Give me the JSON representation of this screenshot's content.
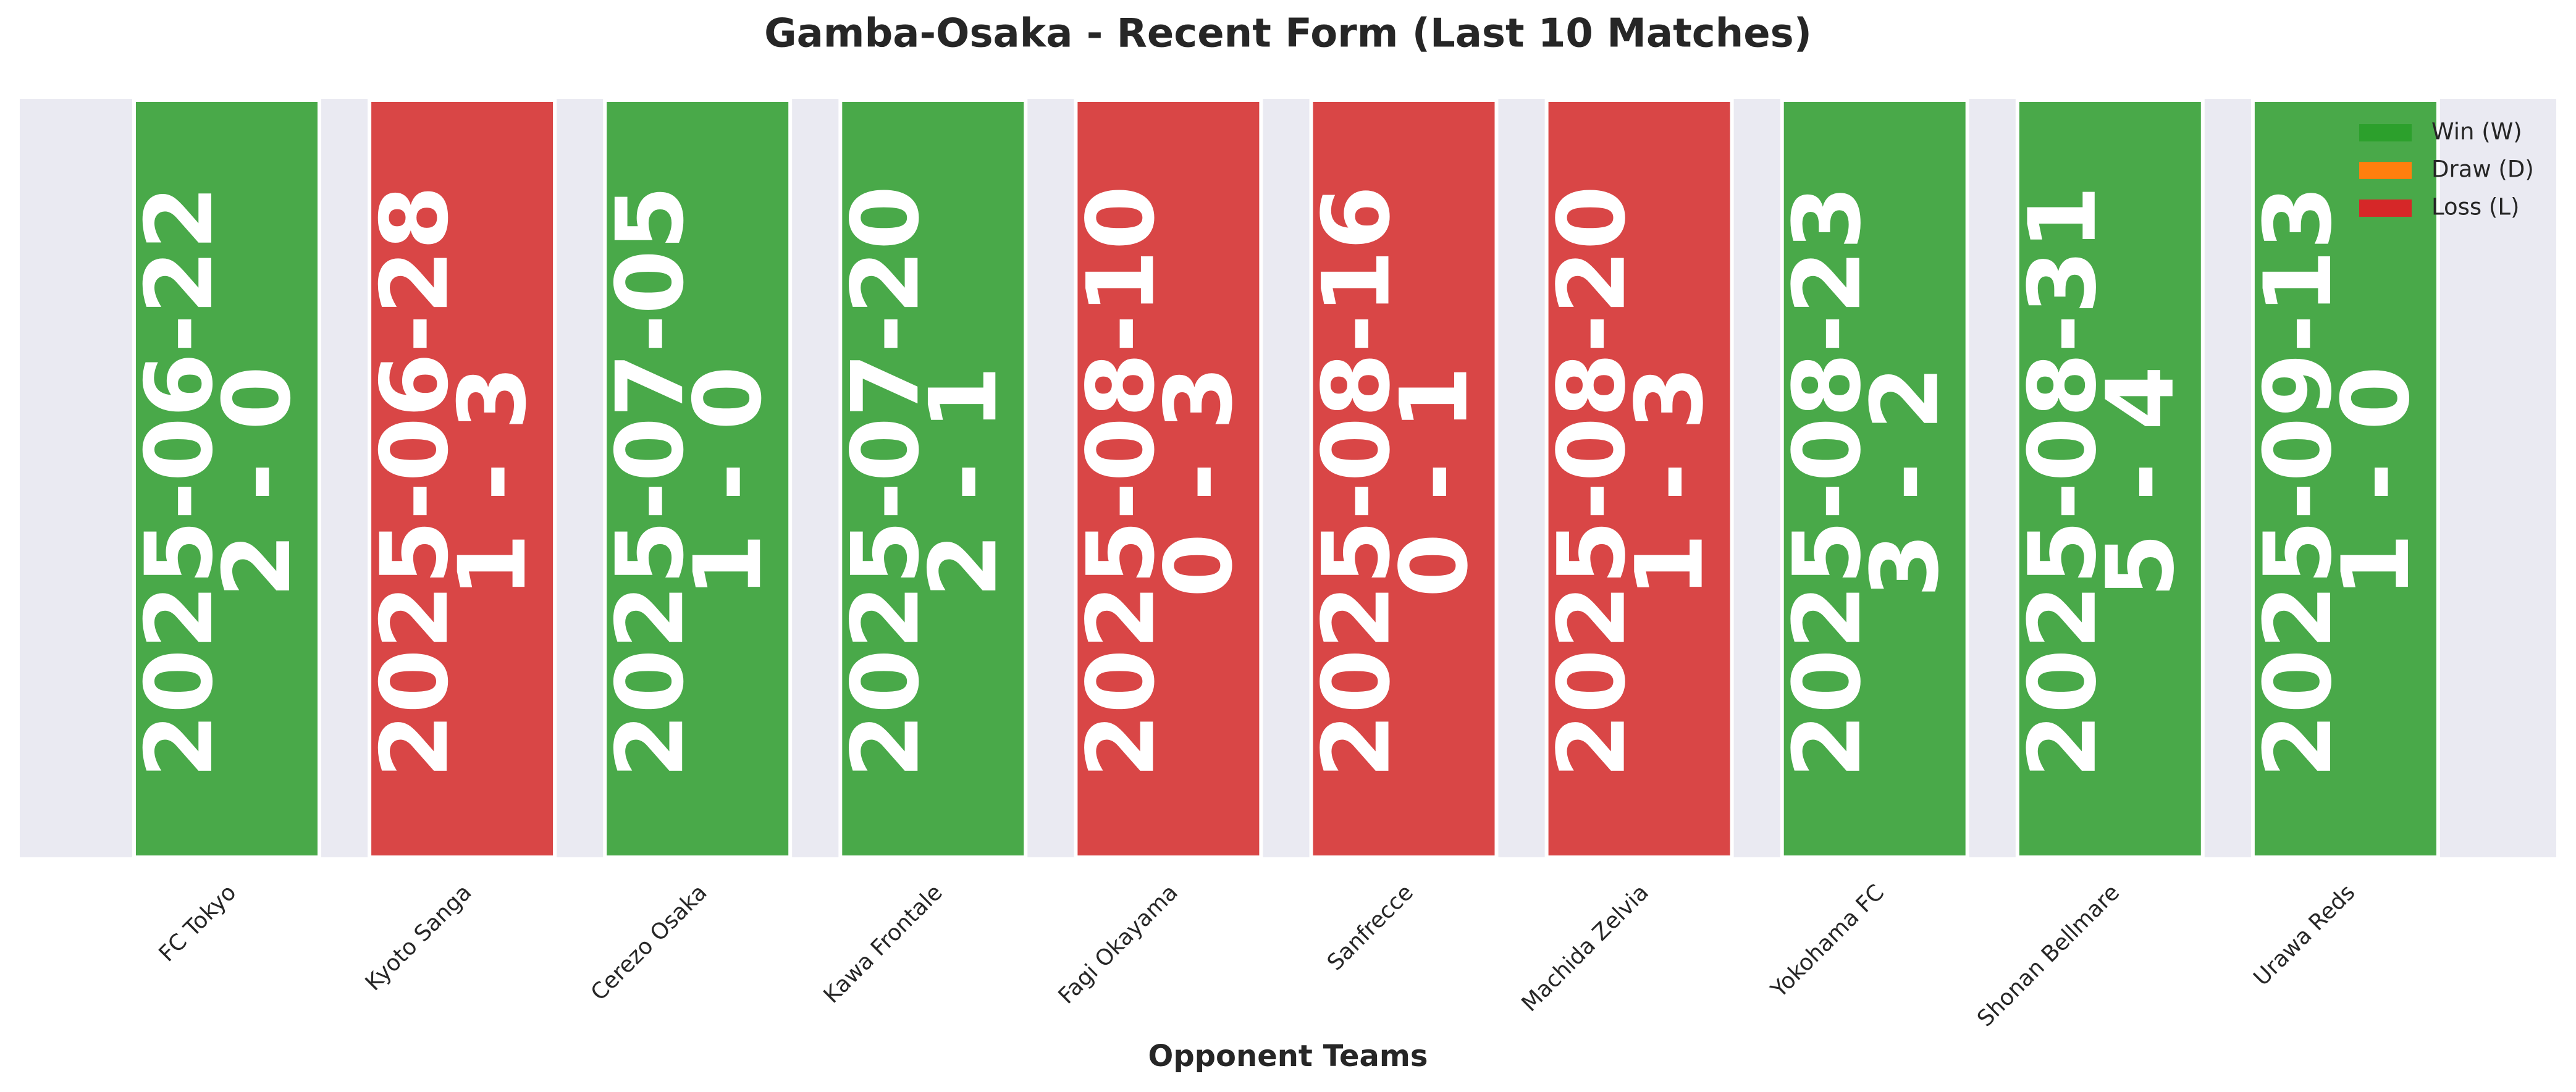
{
  "chart_data": {
    "type": "form",
    "title": "Gamba-Osaka - Recent Form (Last 10 Matches)",
    "x_label": "Opponent Teams",
    "categories": [
      "FC Tokyo",
      "Kyoto Sanga",
      "Cerezo Osaka",
      "Kawa Frontale",
      "Fagi Okayama",
      "Sanfrecce",
      "Machida Zelvia",
      "Yokohama FC",
      "Shonan Bellmare",
      "Urawa Reds"
    ],
    "dates": [
      "2025-06-22",
      "2025-06-28",
      "2025-07-05",
      "2025-07-20",
      "2025-08-10",
      "2025-08-16",
      "2025-08-20",
      "2025-08-23",
      "2025-08-31",
      "2025-09-13"
    ],
    "scores": [
      "2 - 0",
      "1 - 3",
      "1 - 0",
      "2 - 1",
      "0 - 3",
      "0 - 1",
      "1 - 3",
      "3 - 2",
      "5 - 4",
      "1 - 0"
    ],
    "colors": [
      "#49a949",
      "#d94646",
      "#49a949",
      "#49a949",
      "#d94646",
      "#d94646",
      "#d94646",
      "#49a949",
      "#49a949",
      "#49a949"
    ],
    "legend": [
      {
        "name": "Win (W)",
        "color": "#2ca02c"
      },
      {
        "name": "Draw (D)",
        "color": "#ff7f0e"
      },
      {
        "name": "Loss (L)",
        "color": "#d62728"
      }
    ],
    "legend_position": "upper right"
  }
}
